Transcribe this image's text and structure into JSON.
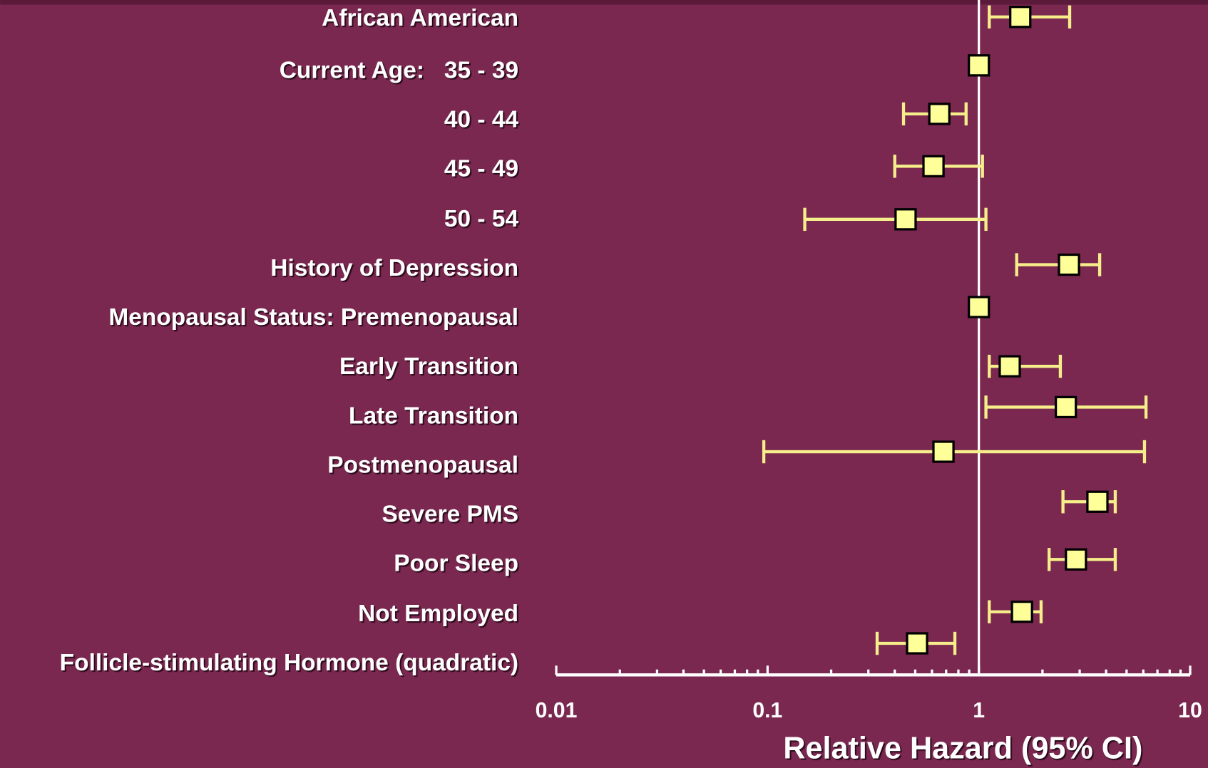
{
  "chart_data": {
    "type": "forest",
    "categories": [
      "African American",
      "Current Age:   35 - 39",
      "40 - 44",
      "45 - 49",
      "50 - 54",
      "History of Depression",
      "Menopausal Status: Premenopausal",
      "Early Transition",
      "Late Transition",
      "Postmenopausal",
      "Severe PMS",
      "Poor Sleep",
      "Not Employed",
      "Follicle-stimulating Hormone (quadratic)"
    ],
    "values": [
      1.57,
      1.0,
      0.65,
      0.61,
      0.45,
      2.67,
      1.0,
      1.4,
      2.58,
      0.68,
      3.64,
      2.88,
      1.6,
      0.51
    ],
    "lower": [
      1.12,
      null,
      0.44,
      0.4,
      0.15,
      1.51,
      null,
      1.12,
      1.08,
      0.096,
      2.5,
      2.15,
      1.12,
      0.33
    ],
    "upper": [
      2.69,
      null,
      0.87,
      1.04,
      1.08,
      3.73,
      null,
      2.43,
      6.18,
      6.08,
      4.42,
      4.42,
      1.97,
      0.77
    ],
    "xlabel": "Relative Hazard (95% CI)",
    "xscale": "log",
    "xlim": [
      0.01,
      10
    ],
    "xticks": [
      0.01,
      0.1,
      1,
      10
    ],
    "minor_ticks": true,
    "reference_line": 1,
    "color": "#ffff99",
    "ci_color": "#f5ee8a"
  }
}
